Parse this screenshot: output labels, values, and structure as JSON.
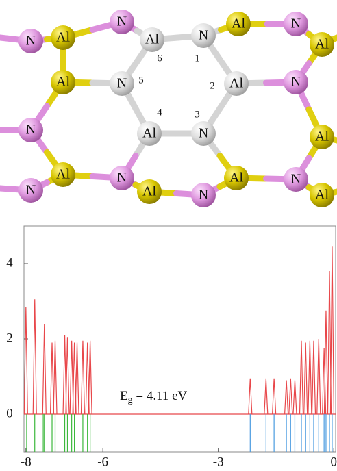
{
  "structure": {
    "atoms": [
      "N",
      "Al",
      "N",
      "Al",
      "N",
      "Al",
      "N",
      "Al",
      "Al",
      "N",
      "Al",
      "N",
      "N",
      "Al",
      "N",
      "Al",
      "Al",
      "N",
      "Al",
      "N",
      "N",
      "Al",
      "N",
      "Al"
    ],
    "site_numbers": [
      1,
      2,
      3,
      4,
      5,
      6
    ]
  },
  "chart_data": {
    "type": "dos",
    "xlim": [
      -8.05,
      0.05
    ],
    "xticks": [
      -8,
      -6,
      -3,
      0
    ],
    "ylim": [
      -1,
      5
    ],
    "yticks": [
      0,
      2,
      4
    ],
    "annotation": {
      "symbol": "E",
      "subscript": "g",
      "text": " = 4.11 eV"
    },
    "peaks": {
      "color": "#e8474a",
      "x": [
        -8.0,
        -7.77,
        -7.52,
        -7.32,
        -7.24,
        -6.99,
        -6.92,
        -6.81,
        -6.74,
        -6.67,
        -6.52,
        -6.4,
        -6.33,
        -2.17,
        -1.76,
        -1.55,
        -1.23,
        -1.12,
        -1.01,
        -0.84,
        -0.73,
        -0.62,
        -0.52,
        -0.39,
        -0.25,
        -0.2,
        -0.11,
        -0.04
      ],
      "values": [
        2.85,
        3.05,
        2.4,
        1.9,
        1.95,
        2.1,
        2.05,
        1.95,
        1.9,
        1.9,
        1.95,
        1.9,
        1.95,
        0.95,
        0.95,
        0.95,
        0.9,
        0.95,
        0.9,
        1.95,
        1.9,
        1.95,
        1.95,
        2.0,
        1.75,
        2.75,
        3.8,
        4.45
      ]
    },
    "occupied_levels": {
      "color": "#3cb83c",
      "x": [
        -7.98,
        -7.77,
        -7.55,
        -7.52,
        -7.32,
        -7.24,
        -6.99,
        -6.92,
        -6.81,
        -6.74,
        -6.52,
        -6.4,
        -6.33
      ]
    },
    "unoccupied_levels": {
      "color": "#4a9be0",
      "x": [
        -2.17,
        -1.76,
        -1.55,
        -1.23,
        -1.12,
        -1.01,
        -0.84,
        -0.73,
        -0.62,
        -0.52,
        -0.39,
        -0.25,
        -0.2,
        -0.11,
        -0.04
      ]
    }
  }
}
